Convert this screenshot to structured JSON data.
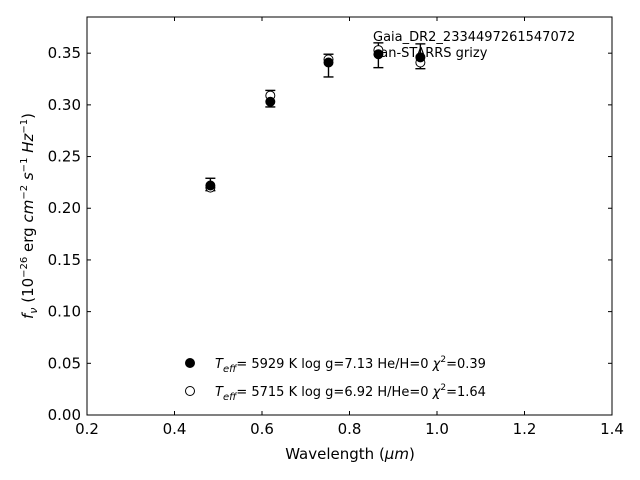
{
  "chart_data": {
    "type": "scatter",
    "xlabel_main": "Wavelength (",
    "xlabel_unit": "μm",
    "xlabel_close": ")",
    "ylabel_f": "f",
    "ylabel_nu": "ν",
    "ylabel_paren_open": " (10",
    "ylabel_exp26": "−26",
    "ylabel_erg": " erg ",
    "ylabel_cm": "cm",
    "ylabel_exp2": "−2",
    "ylabel_s": "s",
    "ylabel_exp1a": "−1",
    "ylabel_hz": "Hz",
    "ylabel_exp1b": "−1",
    "ylabel_paren_close": ")",
    "xlim": [
      0.2,
      1.4
    ],
    "ylim": [
      0.0,
      0.385
    ],
    "xticks": [
      0.2,
      0.4,
      0.6,
      0.8,
      1.0,
      1.2,
      1.4
    ],
    "xtick_labels": [
      "0.2",
      "0.4",
      "0.6",
      "0.8",
      "1.0",
      "1.2",
      "1.4"
    ],
    "yticks": [
      0.0,
      0.05,
      0.1,
      0.15,
      0.2,
      0.25,
      0.3,
      0.35
    ],
    "ytick_labels": [
      "0.00",
      "0.05",
      "0.10",
      "0.15",
      "0.20",
      "0.25",
      "0.30",
      "0.35"
    ],
    "annotation_line1": "Gaia_DR2_2334497261547072",
    "annotation_line2": "Pan-STARRS grizy",
    "observed": {
      "x": [
        0.482,
        0.619,
        0.752,
        0.866,
        0.962
      ],
      "y": [
        0.223,
        0.306,
        0.338,
        0.348,
        0.347
      ],
      "yerr": [
        0.006,
        0.008,
        0.011,
        0.012,
        0.012
      ]
    },
    "series": [
      {
        "marker": "filled",
        "x": [
          0.482,
          0.619,
          0.752,
          0.866,
          0.962
        ],
        "y": [
          0.222,
          0.303,
          0.341,
          0.349,
          0.346
        ],
        "legend_T": "T",
        "legend_eff": "eff",
        "legend_rest": "=  5929 K  log g=7.13  He/H=0  ",
        "legend_chi": "χ",
        "legend_chi_exp": "2",
        "legend_chi_val": "=0.39"
      },
      {
        "marker": "open",
        "x": [
          0.482,
          0.619,
          0.752,
          0.866,
          0.962
        ],
        "y": [
          0.22,
          0.309,
          0.344,
          0.353,
          0.341
        ],
        "legend_T": "T",
        "legend_eff": "eff",
        "legend_rest": "=  5715 K  log g=6.92  H/He=0  ",
        "legend_chi": "χ",
        "legend_chi_exp": "2",
        "legend_chi_val": "=1.64"
      }
    ]
  }
}
